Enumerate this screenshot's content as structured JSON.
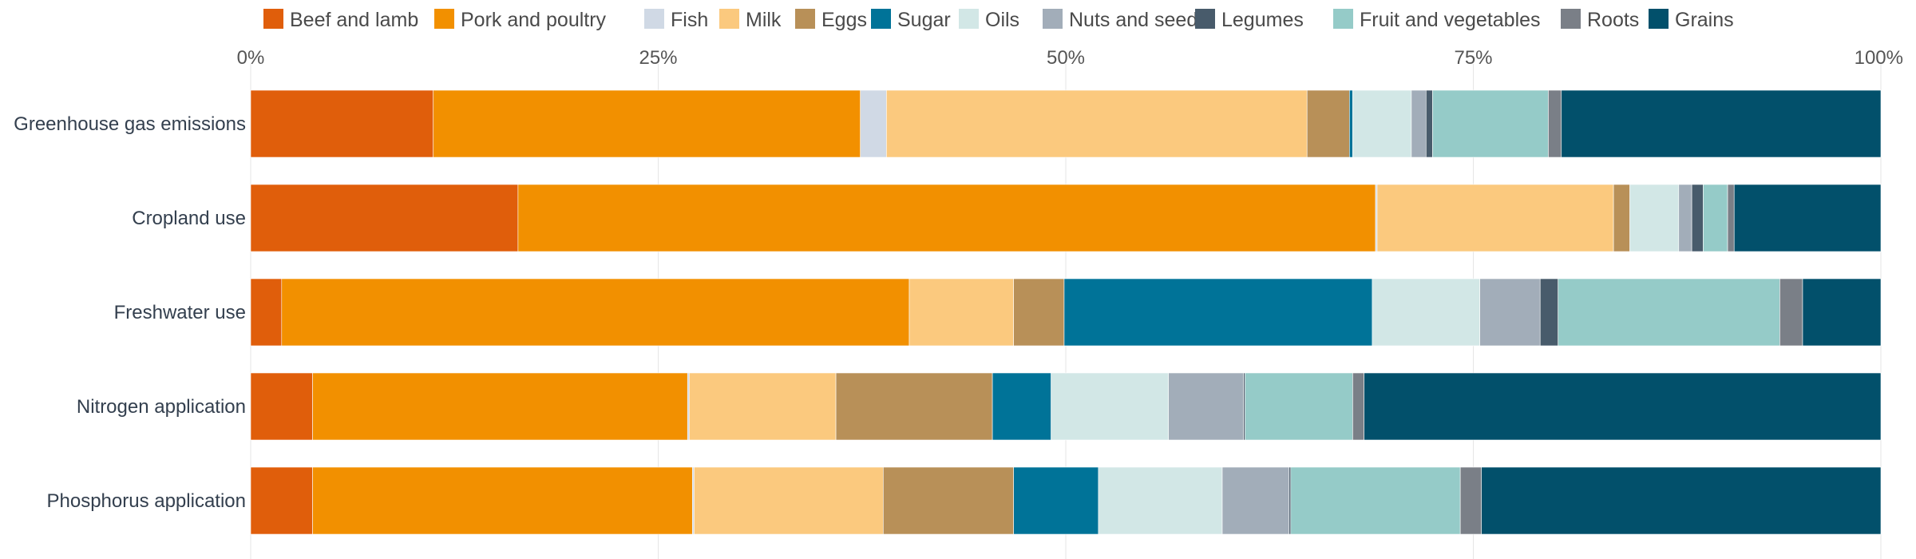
{
  "chart_data": {
    "type": "bar",
    "orientation": "horizontal",
    "stacked": true,
    "normalized": true,
    "xlim": [
      0,
      100
    ],
    "x_ticks": [
      "0%",
      "25%",
      "50%",
      "75%",
      "100%"
    ],
    "grid": true,
    "legend_position": "top",
    "categories": [
      "Greenhouse gas emissions",
      "Cropland use",
      "Freshwater use",
      "Nitrogen application",
      "Phosphorus application"
    ],
    "series": [
      {
        "name": "Beef and lamb",
        "color": "#e05e0b",
        "values": [
          11.2,
          16.4,
          1.9,
          3.8,
          3.8
        ]
      },
      {
        "name": "Pork and poultry",
        "color": "#f29000",
        "values": [
          26.2,
          52.6,
          38.5,
          23.0,
          23.3
        ]
      },
      {
        "name": "Fish",
        "color": "#d0d9e5",
        "values": [
          1.6,
          0.1,
          0.0,
          0.1,
          0.1
        ]
      },
      {
        "name": "Milk",
        "color": "#fbc97e",
        "values": [
          25.8,
          14.5,
          6.4,
          9.0,
          11.6
        ]
      },
      {
        "name": "Eggs",
        "color": "#b89058",
        "values": [
          2.6,
          1.0,
          3.1,
          9.6,
          8.0
        ]
      },
      {
        "name": "Sugar",
        "color": "#007398",
        "values": [
          0.2,
          0.0,
          18.9,
          3.6,
          5.2
        ]
      },
      {
        "name": "Oils",
        "color": "#d2e7e6",
        "values": [
          3.6,
          3.0,
          6.6,
          7.2,
          7.6
        ]
      },
      {
        "name": "Nuts and seeds",
        "color": "#a2adb9",
        "values": [
          0.9,
          0.8,
          3.7,
          4.6,
          4.1
        ]
      },
      {
        "name": "Legumes",
        "color": "#485b6b",
        "values": [
          0.4,
          0.7,
          1.1,
          0.1,
          0.1
        ]
      },
      {
        "name": "Fruit and vegetables",
        "color": "#95cbc8",
        "values": [
          7.1,
          1.5,
          13.6,
          6.6,
          10.4
        ]
      },
      {
        "name": "Roots",
        "color": "#7a7f87",
        "values": [
          0.8,
          0.4,
          1.4,
          0.7,
          1.3
        ]
      },
      {
        "name": "Grains",
        "color": "#02506b",
        "values": [
          19.6,
          9.0,
          4.8,
          31.7,
          24.5
        ]
      }
    ]
  }
}
